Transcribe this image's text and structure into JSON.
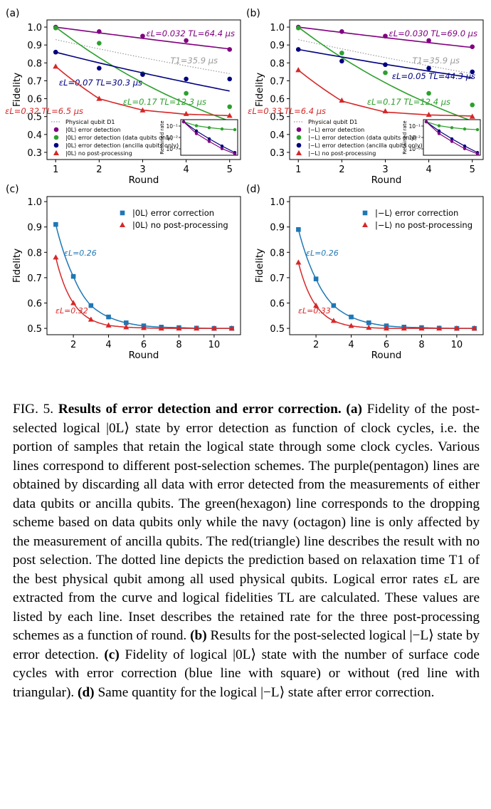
{
  "colors": {
    "purple": "#800080",
    "green": "#2ca02c",
    "navy": "#00007f",
    "red": "#d62728",
    "blue": "#1f77b4",
    "gray": "#9a9a9a"
  },
  "chart_data": [
    {
      "panel_label": "(a)",
      "type": "scatter",
      "xlabel": "Round",
      "ylabel": "Fidelity",
      "xlim": [
        0.8,
        5.25
      ],
      "ylim": [
        0.26,
        1.04
      ],
      "xticks": [
        "1",
        "2",
        "3",
        "4",
        "5"
      ],
      "yticks": [
        "0.3",
        "0.4",
        "0.5",
        "0.6",
        "0.7",
        "0.8",
        "0.9",
        "1.0"
      ],
      "series": [
        {
          "name": "|0L⟩ error detection",
          "color": "purple",
          "x": [
            1,
            2,
            3,
            4,
            5
          ],
          "y": [
            1.0,
            0.975,
            0.95,
            0.925,
            0.875
          ],
          "fit": [
            1.0,
            0.968,
            0.937,
            0.907,
            0.878
          ],
          "label": "εL=0.032 TL=64.4 μs"
        },
        {
          "name": "|0L⟩ error detection (data qubits only)",
          "color": "green",
          "x": [
            1,
            2,
            3,
            4,
            5
          ],
          "y": [
            0.995,
            0.91,
            0.74,
            0.63,
            0.555
          ],
          "fit": [
            1.0,
            0.83,
            0.689,
            0.572,
            0.475
          ],
          "label": "εL=0.17 TL=12.3 μs"
        },
        {
          "name": "|0L⟩ error detection (ancilla qubits only)",
          "color": "navy",
          "x": [
            1,
            2,
            3,
            4,
            5
          ],
          "y": [
            0.86,
            0.77,
            0.735,
            0.71,
            0.71
          ],
          "fit": [
            0.86,
            0.8,
            0.744,
            0.692,
            0.643
          ],
          "label": "εL=0.07 TL=30.3 μs"
        },
        {
          "name": "|0L⟩ no post-processing",
          "color": "red",
          "x": [
            1,
            2,
            3,
            4,
            5
          ],
          "y": [
            0.78,
            0.6,
            0.535,
            0.515,
            0.505
          ],
          "fit": [
            0.78,
            0.6,
            0.536,
            0.513,
            0.505
          ],
          "label": "εL=0.32 TL=6.5 μs"
        }
      ],
      "physical": {
        "name": "Physical qubit D1",
        "y1": 0.93,
        "y5": 0.74,
        "label": "T1=35.9 μs"
      },
      "inset": {
        "ylabel": "Retained rate",
        "yticks": [
          "10⁻¹",
          "10⁻²",
          "10⁻³"
        ]
      }
    },
    {
      "panel_label": "(b)",
      "type": "scatter",
      "xlabel": "Round",
      "ylabel": "Fidelity",
      "xlim": [
        0.8,
        5.25
      ],
      "ylim": [
        0.26,
        1.04
      ],
      "xticks": [
        "1",
        "2",
        "3",
        "4",
        "5"
      ],
      "yticks": [
        "0.3",
        "0.4",
        "0.5",
        "0.6",
        "0.7",
        "0.8",
        "0.9",
        "1.0"
      ],
      "series": [
        {
          "name": "|−L⟩ error detection",
          "color": "purple",
          "x": [
            1,
            2,
            3,
            4,
            5
          ],
          "y": [
            1.0,
            0.975,
            0.95,
            0.925,
            0.89
          ],
          "fit": [
            1.0,
            0.97,
            0.941,
            0.913,
            0.886
          ],
          "label": "εL=0.030 TL=69.0 μs"
        },
        {
          "name": "|−L⟩ error detection (data qubits only)",
          "color": "green",
          "x": [
            1,
            2,
            3,
            4,
            5
          ],
          "y": [
            0.995,
            0.855,
            0.745,
            0.63,
            0.565
          ],
          "fit": [
            1.0,
            0.83,
            0.689,
            0.572,
            0.475
          ],
          "label": "εL=0.17 TL=12.4 μs"
        },
        {
          "name": "|−L⟩ error detection (ancilla qubits only)",
          "color": "navy",
          "x": [
            1,
            2,
            3,
            4,
            5
          ],
          "y": [
            0.875,
            0.81,
            0.79,
            0.77,
            0.75
          ],
          "fit": [
            0.875,
            0.833,
            0.792,
            0.754,
            0.717
          ],
          "label": "εL=0.05 TL=44.3 μs"
        },
        {
          "name": "|−L⟩ no post-processing",
          "color": "red",
          "x": [
            1,
            2,
            3,
            4,
            5
          ],
          "y": [
            0.76,
            0.59,
            0.53,
            0.51,
            0.5
          ],
          "fit": [
            0.76,
            0.587,
            0.525,
            0.509,
            0.503
          ],
          "label": "εL=0.33 TL=6.4 μs"
        }
      ],
      "physical": {
        "name": "Physical qubit D1",
        "y1": 0.93,
        "y5": 0.74,
        "label": "T1=35.9 μs"
      },
      "inset": {
        "ylabel": "Retained rate",
        "yticks": [
          "10⁻¹",
          "10⁻²",
          "10⁻³"
        ]
      }
    },
    {
      "panel_label": "(c)",
      "type": "line",
      "xlabel": "Round",
      "ylabel": "Fidelity",
      "xlim": [
        0.5,
        11.5
      ],
      "ylim": [
        0.475,
        1.02
      ],
      "xticks": [
        "2",
        "4",
        "6",
        "8",
        "10"
      ],
      "yticks": [
        "0.5",
        "0.6",
        "0.7",
        "0.8",
        "0.9",
        "1.0"
      ],
      "series": [
        {
          "name": "|0L⟩ error correction",
          "color": "blue",
          "marker": "square",
          "x": [
            1,
            2,
            3,
            4,
            5,
            6,
            7,
            8,
            9,
            10,
            11
          ],
          "y": [
            0.91,
            0.705,
            0.59,
            0.545,
            0.522,
            0.51,
            0.505,
            0.503,
            0.501,
            0.5,
            0.5
          ],
          "label": "εL=0.26"
        },
        {
          "name": "|0L⟩ no post-processing",
          "color": "red",
          "marker": "triangle",
          "x": [
            1,
            2,
            3,
            4,
            5,
            6,
            7,
            8,
            9,
            10,
            11
          ],
          "y": [
            0.78,
            0.6,
            0.535,
            0.512,
            0.505,
            0.502,
            0.5,
            0.5,
            0.5,
            0.5,
            0.5
          ],
          "label": "εL=0.32"
        }
      ]
    },
    {
      "panel_label": "(d)",
      "type": "line",
      "xlabel": "Round",
      "ylabel": "Fidelity",
      "xlim": [
        0.5,
        11.5
      ],
      "ylim": [
        0.475,
        1.02
      ],
      "xticks": [
        "2",
        "4",
        "6",
        "8",
        "10"
      ],
      "yticks": [
        "0.5",
        "0.6",
        "0.7",
        "0.8",
        "0.9",
        "1.0"
      ],
      "series": [
        {
          "name": "|−L⟩ error correction",
          "color": "blue",
          "marker": "square",
          "x": [
            1,
            2,
            3,
            4,
            5,
            6,
            7,
            8,
            9,
            10,
            11
          ],
          "y": [
            0.89,
            0.695,
            0.59,
            0.545,
            0.522,
            0.51,
            0.505,
            0.503,
            0.501,
            0.5,
            0.5
          ],
          "label": "εL=0.26"
        },
        {
          "name": "|−L⟩ no post-processing",
          "color": "red",
          "marker": "triangle",
          "x": [
            1,
            2,
            3,
            4,
            5,
            6,
            7,
            8,
            9,
            10,
            11
          ],
          "y": [
            0.76,
            0.59,
            0.53,
            0.51,
            0.503,
            0.5,
            0.5,
            0.5,
            0.5,
            0.5,
            0.5
          ],
          "label": "εL=0.33"
        }
      ]
    }
  ],
  "caption": {
    "fig_label": "FIG. 5.",
    "title": "Results of error detection and error correction.",
    "a_label": "(a)",
    "a_text": "Fidelity of the post-selected logical |0L⟩ state by error detection as function of clock cycles, i.e. the portion of samples that retain the logical state through some clock cycles. Various lines correspond to different post-selection schemes. The purple(pentagon) lines are obtained by discarding all data with error detected from the measurements of either data qubits or ancilla qubits. The green(hexagon) line corresponds to the dropping scheme based on data qubits only while the navy (octagon) line is only affected by the measurement of ancilla qubits. The red(triangle) line describes the result with no post selection. The dotted line depicts the prediction based on relaxation time T1 of the best physical qubit among all used physical qubits. Logical error rates εL are extracted from the curve and logical fidelities TL are calculated. These values are listed by each line. Inset describes the retained rate for the three post-processing schemes as a function of round.",
    "b_label": "(b)",
    "b_text": "Results for the post-selected logical |−L⟩ state by error detection.",
    "c_label": "(c)",
    "c_text": "Fidelity of logical |0L⟩ state with the number of surface code cycles with error correction (blue line with square) or without (red line with triangular).",
    "d_label": "(d)",
    "d_text": "Same quantity for the logical |−L⟩ state after error correction."
  }
}
